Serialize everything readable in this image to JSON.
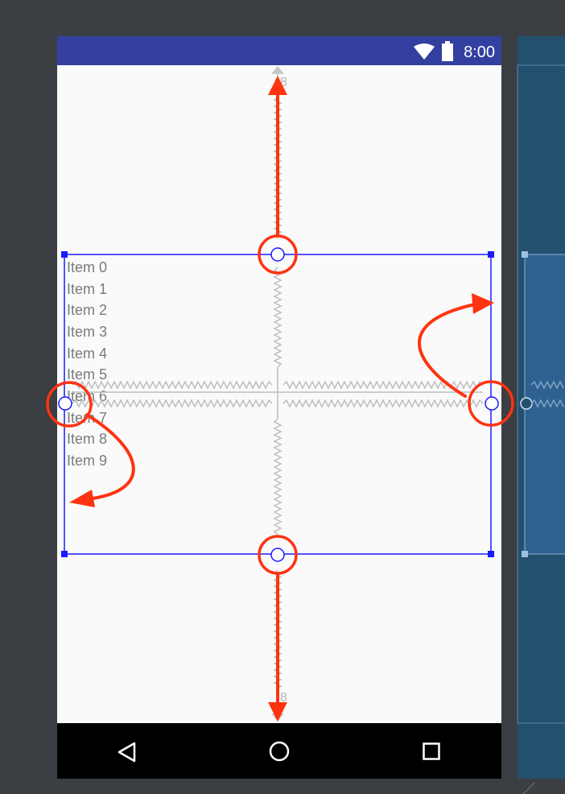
{
  "status_bar": {
    "time": "8:00",
    "icons": [
      "wifi-icon",
      "battery-icon"
    ]
  },
  "list": {
    "items": [
      "Item 0",
      "Item 1",
      "Item 2",
      "Item 3",
      "Item 4",
      "Item 5",
      "Item 6",
      "Item 7",
      "Item 8",
      "Item 9"
    ]
  },
  "constraints": {
    "top_margin": "8",
    "bottom_margin": "8"
  },
  "nav_bar": {
    "buttons": [
      "back-icon",
      "home-icon",
      "recents-icon"
    ]
  },
  "colors": {
    "selection": "#1a1aff",
    "annotation": "#ff3311",
    "status_bar": "#3340a0",
    "blueprint": "#24506f",
    "spring": "#bbbbbb"
  }
}
